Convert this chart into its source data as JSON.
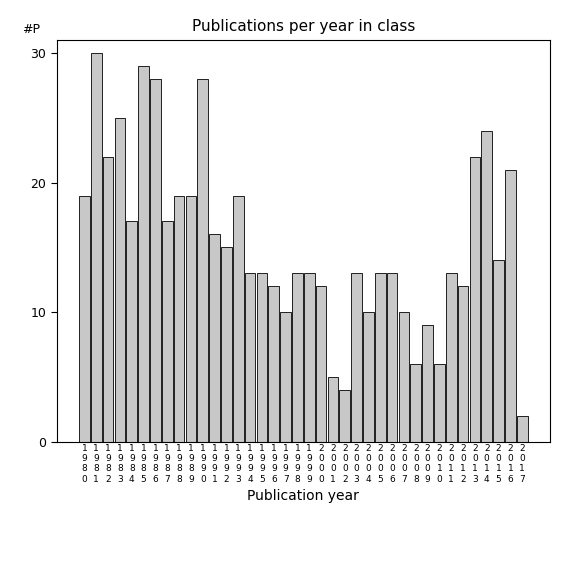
{
  "title": "Publications per year in class",
  "xlabel": "Publication year",
  "ylabel_annotation": "#P",
  "bar_color": "#c8c8c8",
  "bar_edgecolor": "#000000",
  "years": [
    1980,
    1981,
    1982,
    1983,
    1984,
    1985,
    1986,
    1987,
    1988,
    1989,
    1990,
    1991,
    1992,
    1993,
    1994,
    1995,
    1996,
    1997,
    1998,
    1999,
    2000,
    2001,
    2002,
    2003,
    2004,
    2005,
    2006,
    2007,
    2008,
    2009,
    2010,
    2011,
    2012,
    2013,
    2014,
    2015,
    2016,
    2017
  ],
  "values": [
    19,
    30,
    22,
    25,
    17,
    29,
    28,
    17,
    19,
    19,
    28,
    16,
    15,
    19,
    13,
    13,
    12,
    10,
    13,
    13,
    12,
    5,
    4,
    13,
    10,
    13,
    13,
    10,
    6,
    9,
    6,
    13,
    12,
    22,
    24,
    14,
    21,
    2
  ],
  "ylim": [
    0,
    31
  ],
  "yticks": [
    0,
    10,
    20,
    30
  ],
  "background_color": "#ffffff"
}
